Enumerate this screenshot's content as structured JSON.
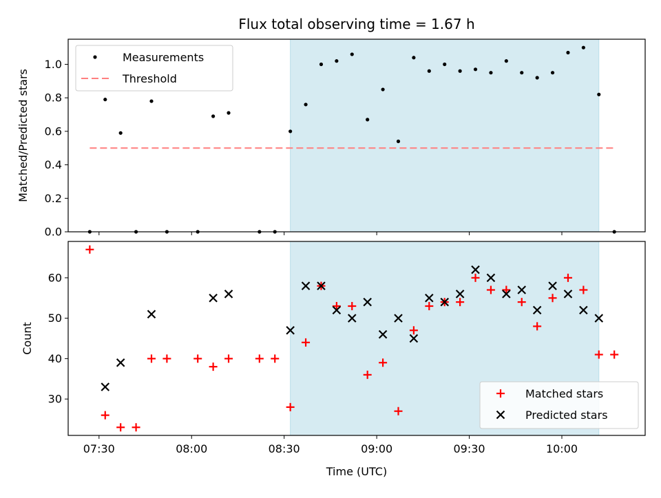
{
  "chart_data": [
    {
      "panel": "top",
      "type": "scatter",
      "title": "Flux total observing time = 1.67 h",
      "ylabel": "Matched/Predicted stars",
      "xlabel": "",
      "ylim": [
        0,
        1.15
      ],
      "xlim": [
        "07:20",
        "10:27"
      ],
      "grid": false,
      "legend_position": "top-left",
      "yticks": [
        {
          "value": 0.0,
          "label": "0.0"
        },
        {
          "value": 0.2,
          "label": "0.2"
        },
        {
          "value": 0.4,
          "label": "0.4"
        },
        {
          "value": 0.6,
          "label": "0.6"
        },
        {
          "value": 0.8,
          "label": "0.8"
        },
        {
          "value": 1.0,
          "label": "1.0"
        }
      ],
      "shaded_region": {
        "start": "08:32",
        "end": "10:12",
        "color": "#add8e6"
      },
      "threshold": {
        "name": "Threshold",
        "value": 0.5,
        "x_start": "07:27",
        "x_end": "10:17",
        "color": "#ff7f7f"
      },
      "series": [
        {
          "name": "Measurements",
          "marker": "dot",
          "color": "#000000",
          "points": [
            {
              "x": "07:27",
              "y": 0.0
            },
            {
              "x": "07:32",
              "y": 0.79
            },
            {
              "x": "07:37",
              "y": 0.59
            },
            {
              "x": "07:42",
              "y": 0.0
            },
            {
              "x": "07:47",
              "y": 0.78
            },
            {
              "x": "07:52",
              "y": 0.0
            },
            {
              "x": "08:02",
              "y": 0.0
            },
            {
              "x": "08:07",
              "y": 0.69
            },
            {
              "x": "08:12",
              "y": 0.71
            },
            {
              "x": "08:22",
              "y": 0.0
            },
            {
              "x": "08:27",
              "y": 0.0
            },
            {
              "x": "08:32",
              "y": 0.6
            },
            {
              "x": "08:37",
              "y": 0.76
            },
            {
              "x": "08:42",
              "y": 1.0
            },
            {
              "x": "08:47",
              "y": 1.02
            },
            {
              "x": "08:52",
              "y": 1.06
            },
            {
              "x": "08:57",
              "y": 0.67
            },
            {
              "x": "09:02",
              "y": 0.85
            },
            {
              "x": "09:07",
              "y": 0.54
            },
            {
              "x": "09:12",
              "y": 1.04
            },
            {
              "x": "09:17",
              "y": 0.96
            },
            {
              "x": "09:22",
              "y": 1.0
            },
            {
              "x": "09:27",
              "y": 0.96
            },
            {
              "x": "09:32",
              "y": 0.97
            },
            {
              "x": "09:37",
              "y": 0.95
            },
            {
              "x": "09:42",
              "y": 1.02
            },
            {
              "x": "09:47",
              "y": 0.95
            },
            {
              "x": "09:52",
              "y": 0.92
            },
            {
              "x": "09:57",
              "y": 0.95
            },
            {
              "x": "10:02",
              "y": 1.07
            },
            {
              "x": "10:07",
              "y": 1.1
            },
            {
              "x": "10:12",
              "y": 0.82
            },
            {
              "x": "10:17",
              "y": 0.0
            }
          ]
        }
      ]
    },
    {
      "panel": "bottom",
      "type": "scatter",
      "title": "",
      "ylabel": "Count",
      "xlabel": "Time (UTC)",
      "ylim": [
        21,
        69
      ],
      "xlim": [
        "07:20",
        "10:27"
      ],
      "grid": false,
      "legend_position": "bottom-right",
      "yticks": [
        {
          "value": 30,
          "label": "30"
        },
        {
          "value": 40,
          "label": "40"
        },
        {
          "value": 50,
          "label": "50"
        },
        {
          "value": 60,
          "label": "60"
        }
      ],
      "xticks": [
        {
          "value": "07:30",
          "label": "07:30"
        },
        {
          "value": "08:00",
          "label": "08:00"
        },
        {
          "value": "08:30",
          "label": "08:30"
        },
        {
          "value": "09:00",
          "label": "09:00"
        },
        {
          "value": "09:30",
          "label": "09:30"
        },
        {
          "value": "10:00",
          "label": "10:00"
        }
      ],
      "shaded_region": {
        "start": "08:32",
        "end": "10:12",
        "color": "#add8e6"
      },
      "series": [
        {
          "name": "Matched stars",
          "marker": "plus",
          "color": "#ff0000",
          "points": [
            {
              "x": "07:27",
              "y": 67
            },
            {
              "x": "07:32",
              "y": 26
            },
            {
              "x": "07:37",
              "y": 23
            },
            {
              "x": "07:42",
              "y": 23
            },
            {
              "x": "07:47",
              "y": 40
            },
            {
              "x": "07:52",
              "y": 40
            },
            {
              "x": "08:02",
              "y": 40
            },
            {
              "x": "08:07",
              "y": 38
            },
            {
              "x": "08:12",
              "y": 40
            },
            {
              "x": "08:22",
              "y": 40
            },
            {
              "x": "08:27",
              "y": 40
            },
            {
              "x": "08:32",
              "y": 28
            },
            {
              "x": "08:37",
              "y": 44
            },
            {
              "x": "08:42",
              "y": 58
            },
            {
              "x": "08:47",
              "y": 53
            },
            {
              "x": "08:52",
              "y": 53
            },
            {
              "x": "08:57",
              "y": 36
            },
            {
              "x": "09:02",
              "y": 39
            },
            {
              "x": "09:07",
              "y": 27
            },
            {
              "x": "09:12",
              "y": 47
            },
            {
              "x": "09:17",
              "y": 53
            },
            {
              "x": "09:22",
              "y": 54
            },
            {
              "x": "09:27",
              "y": 54
            },
            {
              "x": "09:32",
              "y": 60
            },
            {
              "x": "09:37",
              "y": 57
            },
            {
              "x": "09:42",
              "y": 57
            },
            {
              "x": "09:47",
              "y": 54
            },
            {
              "x": "09:52",
              "y": 48
            },
            {
              "x": "09:57",
              "y": 55
            },
            {
              "x": "10:02",
              "y": 60
            },
            {
              "x": "10:07",
              "y": 57
            },
            {
              "x": "10:12",
              "y": 41
            },
            {
              "x": "10:17",
              "y": 41
            }
          ]
        },
        {
          "name": "Predicted stars",
          "marker": "x",
          "color": "#000000",
          "points": [
            {
              "x": "07:32",
              "y": 33
            },
            {
              "x": "07:37",
              "y": 39
            },
            {
              "x": "07:47",
              "y": 51
            },
            {
              "x": "08:07",
              "y": 55
            },
            {
              "x": "08:12",
              "y": 56
            },
            {
              "x": "08:32",
              "y": 47
            },
            {
              "x": "08:37",
              "y": 58
            },
            {
              "x": "08:42",
              "y": 58
            },
            {
              "x": "08:47",
              "y": 52
            },
            {
              "x": "08:52",
              "y": 50
            },
            {
              "x": "08:57",
              "y": 54
            },
            {
              "x": "09:02",
              "y": 46
            },
            {
              "x": "09:07",
              "y": 50
            },
            {
              "x": "09:12",
              "y": 45
            },
            {
              "x": "09:17",
              "y": 55
            },
            {
              "x": "09:22",
              "y": 54
            },
            {
              "x": "09:27",
              "y": 56
            },
            {
              "x": "09:32",
              "y": 62
            },
            {
              "x": "09:37",
              "y": 60
            },
            {
              "x": "09:42",
              "y": 56
            },
            {
              "x": "09:47",
              "y": 57
            },
            {
              "x": "09:52",
              "y": 52
            },
            {
              "x": "09:57",
              "y": 58
            },
            {
              "x": "10:02",
              "y": 56
            },
            {
              "x": "10:07",
              "y": 52
            },
            {
              "x": "10:12",
              "y": 50
            }
          ]
        }
      ]
    }
  ]
}
